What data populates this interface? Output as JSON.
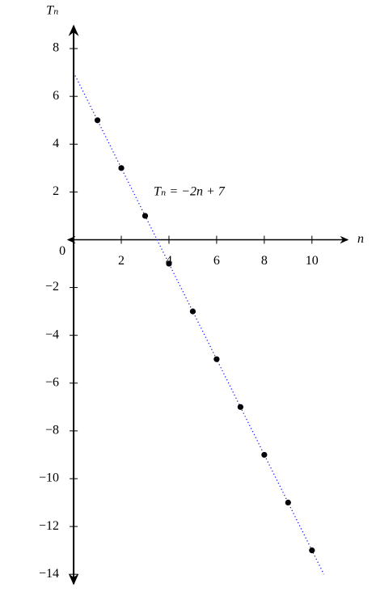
{
  "chart_data": {
    "type": "scatter",
    "y_label": "Tₙ",
    "x_label": "n",
    "annotation": "Tₙ = −2n + 7",
    "origin_label": 0,
    "xlim": [
      -0.24,
      11.5
    ],
    "ylim": [
      -14.4,
      8.95
    ],
    "xticks": [
      2,
      4,
      6,
      8,
      10
    ],
    "yticks": [
      8,
      6,
      4,
      2,
      {
        "value": -2,
        "label": "−2"
      },
      {
        "value": -4,
        "label": "−4"
      },
      {
        "value": -6,
        "label": "−6"
      },
      {
        "value": -8,
        "label": "−8"
      },
      {
        "value": -10,
        "label": "−10"
      },
      {
        "value": -12,
        "label": "−12"
      },
      {
        "value": -14,
        "label": "−14"
      }
    ],
    "series": [
      {
        "x": [
          1,
          2,
          3,
          4,
          5,
          6,
          7,
          8,
          9,
          10
        ],
        "values": [
          5,
          3,
          1,
          -1,
          -3,
          -5,
          -7,
          -9,
          -11,
          -13
        ],
        "color": "#000000"
      },
      {
        "x": [
          0,
          10.5
        ],
        "values": [
          7,
          -14
        ],
        "color": "#0000ff",
        "style": "dotted"
      }
    ]
  }
}
